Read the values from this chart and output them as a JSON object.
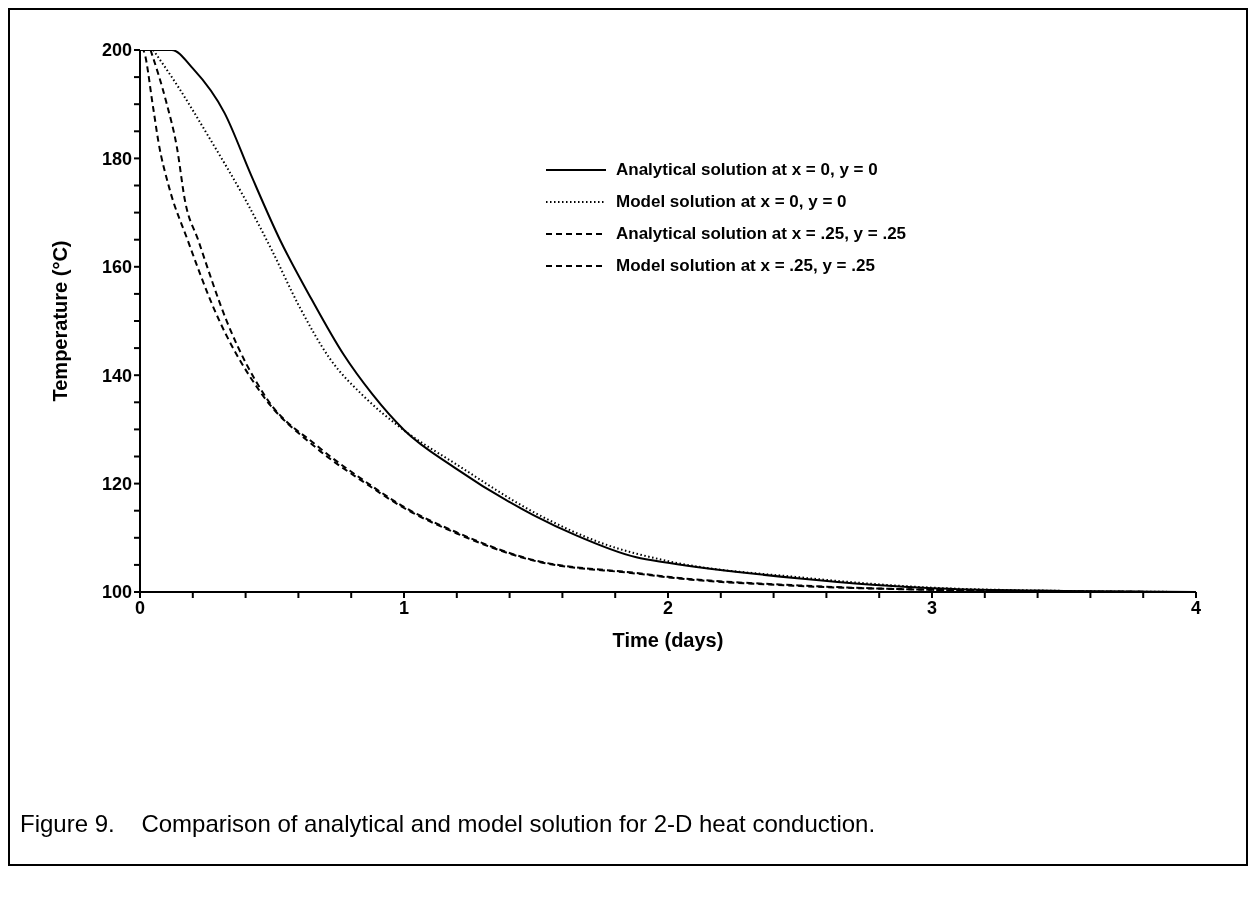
{
  "chart_data": {
    "type": "line",
    "xlabel": "Time (days)",
    "ylabel": "Temperature (°C)",
    "xlim": [
      0,
      4
    ],
    "ylim": [
      100,
      200
    ],
    "xticks": [
      0,
      {
        "value": 0.2,
        "label": null
      },
      {
        "value": 0.4,
        "label": null
      },
      {
        "value": 0.6,
        "label": null
      },
      {
        "value": 0.8,
        "label": null
      },
      1,
      {
        "value": 1.2,
        "label": null
      },
      {
        "value": 1.4,
        "label": null
      },
      {
        "value": 1.6,
        "label": null
      },
      {
        "value": 1.8,
        "label": null
      },
      2,
      {
        "value": 2.2,
        "label": null
      },
      {
        "value": 2.4,
        "label": null
      },
      {
        "value": 2.6,
        "label": null
      },
      {
        "value": 2.8,
        "label": null
      },
      3,
      {
        "value": 3.2,
        "label": null
      },
      {
        "value": 3.4,
        "label": null
      },
      {
        "value": 3.6,
        "label": null
      },
      {
        "value": 3.8,
        "label": null
      },
      4
    ],
    "yticks": [
      100,
      {
        "value": 105,
        "label": null
      },
      {
        "value": 110,
        "label": null
      },
      {
        "value": 115,
        "label": null
      },
      120,
      {
        "value": 125,
        "label": null
      },
      {
        "value": 130,
        "label": null
      },
      {
        "value": 135,
        "label": null
      },
      140,
      {
        "value": 145,
        "label": null
      },
      {
        "value": 150,
        "label": null
      },
      {
        "value": 155,
        "label": null
      },
      160,
      {
        "value": 165,
        "label": null
      },
      {
        "value": 170,
        "label": null
      },
      {
        "value": 175,
        "label": null
      },
      180,
      {
        "value": 185,
        "label": null
      },
      {
        "value": 190,
        "label": null
      },
      {
        "value": 195,
        "label": null
      },
      200
    ],
    "grid": false,
    "legend": "top right",
    "marker": "none",
    "series": [
      {
        "name": "Analytical solution at x = 0, y = 0",
        "color": "#000000",
        "line_style": "solid",
        "x": [
          0,
          0.12,
          0.2,
          0.32,
          0.42,
          0.53,
          0.65,
          0.77,
          0.88,
          1.0,
          1.19,
          1.49,
          1.65,
          1.88,
          2.0,
          2.5,
          3.0,
          3.5,
          4.0
        ],
        "values": [
          200,
          200,
          196.6,
          188.4,
          177,
          165,
          154,
          143.9,
          136.5,
          129.9,
          123,
          114.2,
          110.5,
          106.4,
          105.4,
          102.5,
          100.7,
          100.2,
          100
        ]
      },
      {
        "name": "Model solution at x = 0, y = 0",
        "color": "#000000",
        "line_style": "dotted",
        "x": [
          0.05,
          0.15,
          0.26,
          0.4,
          0.5,
          0.6,
          0.72,
          0.85,
          0.99,
          1.2,
          1.5,
          1.75,
          2.0,
          2.5,
          3.0,
          3.5,
          4.0
        ],
        "values": [
          200,
          192.8,
          184,
          172.3,
          163,
          153,
          143,
          136,
          130.2,
          123.5,
          114.5,
          109,
          105.7,
          102.7,
          100.8,
          100.2,
          100
        ]
      },
      {
        "name": "Analytical solution at x = .25, y = .25",
        "color": "#000000",
        "line_style": "dashed",
        "x": [
          0.04,
          0.1,
          0.14,
          0.17,
          0.22,
          0.33,
          0.48,
          0.67,
          0.85,
          1.0,
          1.2,
          1.49,
          1.88,
          2.0,
          2.5,
          3.0,
          3.5,
          4.0
        ],
        "values": [
          200,
          190.3,
          182,
          172.3,
          165,
          149.8,
          135.7,
          127,
          120.5,
          115.7,
          111,
          105.9,
          103.5,
          102.8,
          101.2,
          100.4,
          100.1,
          100
        ]
      },
      {
        "name": "Model solution at x = .25, y = .25",
        "color": "#000000",
        "line_style": "dashed",
        "x": [
          0,
          0.01,
          0.05,
          0.07,
          0.11,
          0.18,
          0.28,
          0.46,
          0.67,
          0.85,
          1.0,
          1.2,
          1.49,
          1.88,
          2.0,
          2.5,
          3.0,
          3.5,
          4.0
        ],
        "values": [
          200,
          200,
          189.3,
          183,
          174.7,
          165,
          152.3,
          136.6,
          126.5,
          120.2,
          115.5,
          110.8,
          105.8,
          103.4,
          102.7,
          101.1,
          100.4,
          100.1,
          100
        ]
      }
    ],
    "annotations": [
      "Figure 9.    Comparison of analytical and model solution for 2-D heat conduction."
    ]
  }
}
